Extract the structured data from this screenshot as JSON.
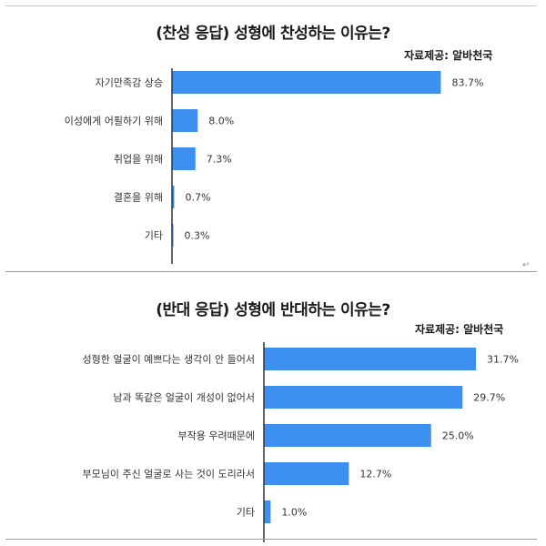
{
  "chart_data": [
    {
      "type": "bar",
      "orientation": "horizontal",
      "title": "(찬성 응답) 성형에 찬성하는 이유는?",
      "source": "자료제공: 알바천국",
      "categories": [
        "자기만족감 상승",
        "이성에게 어필하기 위해",
        "취업을 위해",
        "결혼을 위해",
        "기타"
      ],
      "values": [
        83.7,
        8.0,
        7.3,
        0.7,
        0.3
      ],
      "value_labels": [
        "83.7%",
        "8.0%",
        "7.3%",
        "0.7%",
        "0.3%"
      ],
      "xlim": [
        0,
        100
      ],
      "bar_color": "#3d8ff0",
      "axis_color": "#333333",
      "grid": false,
      "legend": "none"
    },
    {
      "type": "bar",
      "orientation": "horizontal",
      "title": "(반대 응답) 성형에 반대하는 이유는?",
      "source": "자료제공: 알바천국",
      "categories": [
        "성형한 얼굴이 예쁘다는 생각이 안 들어서",
        "남과 똑같은 얼굴이 개성이 없어서",
        "부작용 우려때문에",
        "부모님이 주신 얼굴로 사는 것이 도리라서",
        "기타"
      ],
      "values": [
        31.7,
        29.7,
        25.0,
        12.7,
        1.0
      ],
      "value_labels": [
        "31.7%",
        "29.7%",
        "25.0%",
        "12.7%",
        "1.0%"
      ],
      "xlim": [
        0,
        40
      ],
      "bar_color": "#3d8ff0",
      "axis_color": "#333333",
      "grid": false,
      "legend": "none"
    }
  ],
  "separator_mark": "↵"
}
